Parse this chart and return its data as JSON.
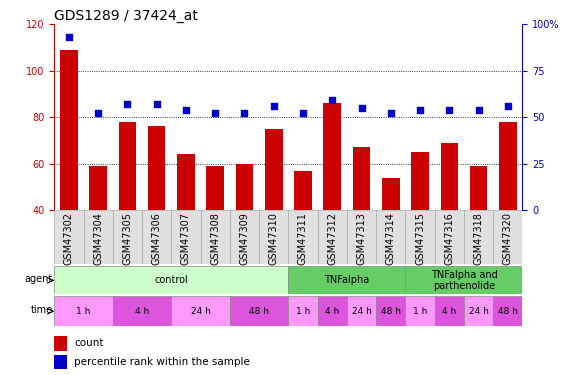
{
  "title": "GDS1289 / 37424_at",
  "samples": [
    "GSM47302",
    "GSM47304",
    "GSM47305",
    "GSM47306",
    "GSM47307",
    "GSM47308",
    "GSM47309",
    "GSM47310",
    "GSM47311",
    "GSM47312",
    "GSM47313",
    "GSM47314",
    "GSM47315",
    "GSM47316",
    "GSM47318",
    "GSM47320"
  ],
  "counts": [
    109,
    59,
    78,
    76,
    64,
    59,
    60,
    75,
    57,
    86,
    67,
    54,
    65,
    69,
    59,
    78
  ],
  "percentiles": [
    93,
    52,
    57,
    57,
    54,
    52,
    52,
    56,
    52,
    59,
    55,
    52,
    54,
    54,
    54,
    56
  ],
  "bar_color": "#cc0000",
  "dot_color": "#0000cc",
  "ylim_left": [
    40,
    120
  ],
  "yticks_left": [
    40,
    60,
    80,
    100,
    120
  ],
  "ylim_right": [
    0,
    100
  ],
  "yticks_right": [
    0,
    25,
    50,
    75,
    100
  ],
  "left_tick_color": "#cc0000",
  "right_tick_color": "#0000cc",
  "grid_dotted_at": [
    60,
    80,
    100
  ],
  "agent_defs": [
    {
      "label": "control",
      "start": 0,
      "end": 8,
      "color": "#ccffcc"
    },
    {
      "label": "TNFalpha",
      "start": 8,
      "end": 12,
      "color": "#66cc66"
    },
    {
      "label": "TNFalpha and\nparthenolide",
      "start": 12,
      "end": 16,
      "color": "#66cc66"
    }
  ],
  "time_labels": [
    "1 h",
    "4 h",
    "24 h",
    "48 h",
    "1 h",
    "4 h",
    "24 h",
    "48 h",
    "1 h",
    "4 h",
    "24 h",
    "48 h"
  ],
  "time_spans": [
    {
      "start": 0,
      "end": 2
    },
    {
      "start": 2,
      "end": 4
    },
    {
      "start": 4,
      "end": 6
    },
    {
      "start": 6,
      "end": 8
    },
    {
      "start": 8,
      "end": 9
    },
    {
      "start": 9,
      "end": 10
    },
    {
      "start": 10,
      "end": 11
    },
    {
      "start": 11,
      "end": 12
    },
    {
      "start": 12,
      "end": 13
    },
    {
      "start": 13,
      "end": 14
    },
    {
      "start": 14,
      "end": 15
    },
    {
      "start": 15,
      "end": 16
    }
  ],
  "time_colors": [
    "#ff99ff",
    "#dd55dd",
    "#ff99ff",
    "#dd55dd",
    "#ff99ff",
    "#dd55dd",
    "#ff99ff",
    "#dd55dd",
    "#ff99ff",
    "#dd55dd",
    "#ff99ff",
    "#dd55dd"
  ],
  "tick_fontsize": 7,
  "title_fontsize": 10,
  "legend_fontsize": 7.5
}
